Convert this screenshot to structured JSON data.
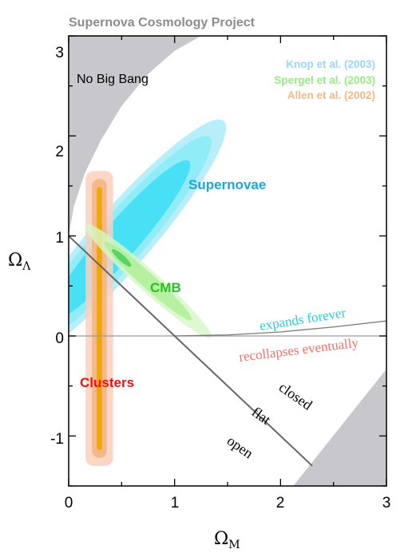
{
  "chart_data": {
    "type": "scatter",
    "title": "Supernova Cosmology Project",
    "xlabel": "Ω",
    "xlabel_sub": "M",
    "ylabel": "Ω",
    "ylabel_sub": "Λ",
    "xlim": [
      0,
      3
    ],
    "ylim": [
      -1.5,
      3
    ],
    "x_ticks": [
      "0",
      "1",
      "2",
      "3"
    ],
    "y_ticks": [
      "3",
      "2",
      "1",
      "0",
      "-1"
    ],
    "legend": [
      {
        "name": "Knop et al. (2003)",
        "color": "#9ad8f5"
      },
      {
        "name": "Spergel et al.  (2003)",
        "color": "#96ee82"
      },
      {
        "name": "Allen et al.  (2002)",
        "color": "#f6b886"
      }
    ],
    "regions": {
      "no_big_bang": {
        "label": "No Big Bang",
        "color": "#c8c8cc"
      },
      "supernovae": {
        "label": "Supernovae",
        "color": "#1aa6e0",
        "center": [
          0.48,
          0.95
        ],
        "angle_deg": 49,
        "sigma_major": [
          1.0,
          1.3,
          1.5
        ],
        "sigma_minor": [
          0.17,
          0.23,
          0.28
        ]
      },
      "cmb": {
        "label": "CMB",
        "color": "#22c422",
        "center": [
          0.75,
          0.55
        ],
        "angle_deg": -42,
        "sigma_major": [
          0.12,
          0.55,
          0.8
        ],
        "sigma_minor": [
          0.03,
          0.07,
          0.1
        ]
      },
      "clusters": {
        "label": "Clusters",
        "color": "#ee1111",
        "x_center": 0.29,
        "y_range": [
          -1.3,
          1.65
        ],
        "half_widths": [
          0.13,
          0.07,
          0.025
        ]
      }
    },
    "lines": {
      "flat": {
        "label": "flat",
        "points": [
          [
            0,
            1
          ],
          [
            2.3,
            -1.3
          ]
        ]
      },
      "zero": {
        "points": [
          [
            0,
            0
          ],
          [
            3,
            0
          ]
        ]
      },
      "expands_recollapses": {
        "label_above": "expands forever",
        "label_below": "recollapses eventually",
        "points": [
          [
            1.0,
            0
          ],
          [
            1.5,
            0.01
          ],
          [
            2.0,
            0.04
          ],
          [
            2.5,
            0.09
          ],
          [
            3.0,
            0.15
          ]
        ]
      }
    },
    "annotations": [
      "closed",
      "open"
    ],
    "colors": {
      "expands": "#1ed2dc",
      "recollapses": "#f07070",
      "cyan_light": "#b8eefa",
      "cyan_mid": "#90ecf6",
      "cyan_dark": "#48e0f4",
      "green_light": "#d6f8c6",
      "green_mid": "#b0ee98",
      "green_dark": "#4ecc5a",
      "cluster_light": "#fcd0bc",
      "cluster_mid": "#f6b886",
      "cluster_dark": "#f0a800"
    }
  }
}
